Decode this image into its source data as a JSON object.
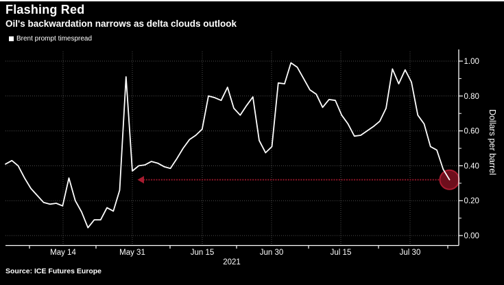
{
  "header": {
    "title": "Flashing Red",
    "subtitle": "Oil's backwardation narrows as delta clouds outlook"
  },
  "legend": {
    "label": "Brent prompt timespread",
    "swatch_color": "#ffffff"
  },
  "source": {
    "text": "Source: ICE Futures Europe"
  },
  "colors": {
    "background": "#000000",
    "text": "#ffffff",
    "grid": "#4d4d4d",
    "axis": "#ffffff",
    "top_border": "#ffffff",
    "series_line": "#ffffff",
    "arrow": "#8f1527",
    "arrowhead": "#a81c30",
    "circle_fill": "#6e0e1c",
    "circle_stroke": "#a81c30"
  },
  "chart_data": {
    "type": "line",
    "title": "Flashing Red",
    "subtitle": "Oil's backwardation narrows as delta clouds outlook",
    "ylabel": "Dollars per barrel",
    "ylim": [
      0.0,
      1.0
    ],
    "y_ticks": [
      0.0,
      0.2,
      0.4,
      0.6,
      0.8,
      1.0
    ],
    "y_tick_labels": [
      "0.00",
      "0.20",
      "0.40",
      "0.60",
      "0.80",
      "1.00"
    ],
    "y_minor_ticks": [
      0.1,
      0.3,
      0.5,
      0.7,
      0.9
    ],
    "x_tick_labels": [
      "May 14",
      "May 31",
      "Jun 15",
      "Jun 30",
      "Jul 15",
      "Jul 30"
    ],
    "x_year_label": "2021",
    "grid": "dotted",
    "legend_position": "top-left",
    "series": [
      {
        "name": "Brent prompt timespread",
        "unit": "dollars per barrel",
        "x_start_date": "2021-05-03",
        "x_end_date": "2021-08-09",
        "frequency": "daily (trading days)",
        "values": [
          0.41,
          0.43,
          0.4,
          0.33,
          0.27,
          0.23,
          0.19,
          0.18,
          0.185,
          0.17,
          0.33,
          0.2,
          0.135,
          0.045,
          0.09,
          0.09,
          0.16,
          0.14,
          0.26,
          0.91,
          0.37,
          0.4,
          0.405,
          0.425,
          0.415,
          0.395,
          0.385,
          0.44,
          0.5,
          0.55,
          0.575,
          0.61,
          0.8,
          0.79,
          0.775,
          0.85,
          0.73,
          0.69,
          0.745,
          0.795,
          0.545,
          0.475,
          0.51,
          0.875,
          0.87,
          0.99,
          0.965,
          0.9,
          0.835,
          0.81,
          0.735,
          0.78,
          0.775,
          0.69,
          0.64,
          0.57,
          0.575,
          0.6,
          0.625,
          0.655,
          0.73,
          0.955,
          0.87,
          0.95,
          0.88,
          0.69,
          0.64,
          0.51,
          0.49,
          0.38,
          0.32
        ]
      }
    ],
    "annotation": {
      "type": "left-pointing dotted arrow from latest data point with highlight circle",
      "points_at_value": 0.32,
      "arrow_level_value": 0.32
    }
  }
}
